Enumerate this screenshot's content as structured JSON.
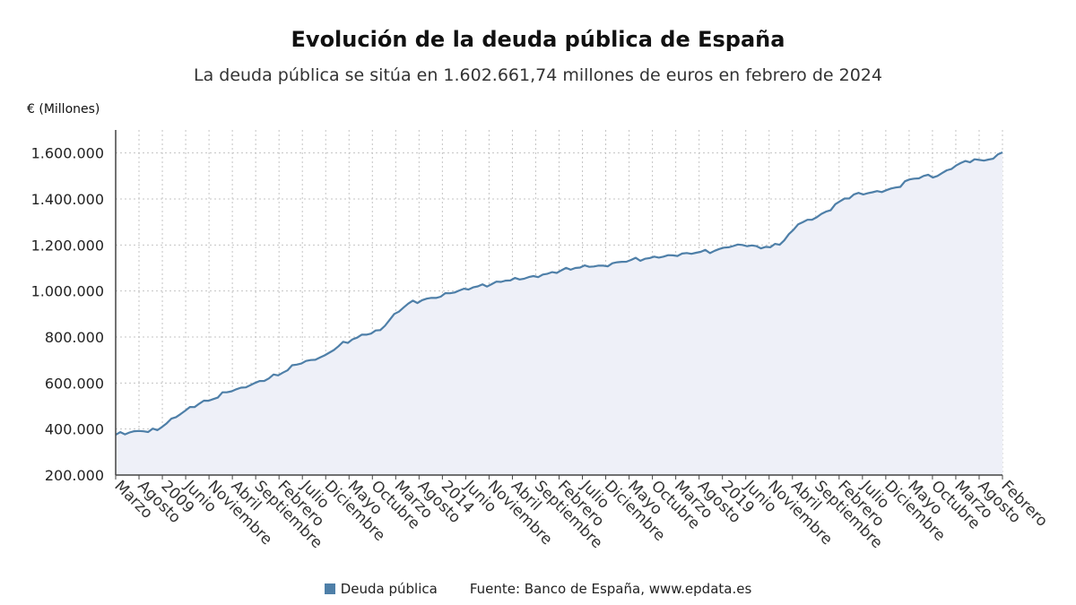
{
  "title": "Evolución de la deuda pública de España",
  "subtitle": "La deuda pública se sitúa en 1.602.661,74 millones de euros en febrero de 2024",
  "footer": {
    "legend_label": "Deuda pública",
    "source": "Fuente: Banco de España, www.epdata.es"
  },
  "colors": {
    "line": "#4e7fa8",
    "area": "#eef0f8",
    "grid": "#c4c4c4"
  },
  "chart_data": {
    "type": "area",
    "ylabel": "€ (Millones)",
    "ylim": [
      200000,
      1700000
    ],
    "y_ticks": [
      "200.000",
      "400.000",
      "600.000",
      "800.000",
      "1.000.000",
      "1.200.000",
      "1.400.000",
      "1.600.000"
    ],
    "x_start": "2008-03",
    "x_end": "2024-02",
    "x_tick_labels": [
      "Marzo",
      "Agosto",
      "2009",
      "Junio",
      "Noviembre",
      "Abril",
      "Septiembre",
      "Febrero",
      "Julio",
      "Diciembre",
      "Mayo",
      "Octubre",
      "Marzo",
      "Agosto",
      "2014",
      "Junio",
      "Noviembre",
      "Abril",
      "Septiembre",
      "Febrero",
      "Julio",
      "Diciembre",
      "Mayo",
      "Octubre",
      "Marzo",
      "Agosto",
      "2019",
      "Junio",
      "Noviembre",
      "Abril",
      "Septiembre",
      "Febrero",
      "Julio",
      "Diciembre",
      "Mayo",
      "Octubre",
      "Marzo",
      "Agosto",
      "Febrero"
    ],
    "grid": true,
    "series": [
      {
        "name": "Deuda pública",
        "anchors": [
          {
            "date": "2008-03",
            "value": 375000
          },
          {
            "date": "2008-06",
            "value": 385000
          },
          {
            "date": "2008-09",
            "value": 390000
          },
          {
            "date": "2008-12",
            "value": 395000
          },
          {
            "date": "2009-03",
            "value": 445000
          },
          {
            "date": "2009-06",
            "value": 480000
          },
          {
            "date": "2009-09",
            "value": 510000
          },
          {
            "date": "2009-12",
            "value": 530000
          },
          {
            "date": "2010-03",
            "value": 560000
          },
          {
            "date": "2010-06",
            "value": 580000
          },
          {
            "date": "2010-09",
            "value": 600000
          },
          {
            "date": "2010-12",
            "value": 620000
          },
          {
            "date": "2011-03",
            "value": 645000
          },
          {
            "date": "2011-06",
            "value": 680000
          },
          {
            "date": "2011-09",
            "value": 700000
          },
          {
            "date": "2011-12",
            "value": 720000
          },
          {
            "date": "2012-03",
            "value": 760000
          },
          {
            "date": "2012-06",
            "value": 790000
          },
          {
            "date": "2012-09",
            "value": 810000
          },
          {
            "date": "2012-12",
            "value": 830000
          },
          {
            "date": "2013-03",
            "value": 900000
          },
          {
            "date": "2013-06",
            "value": 945000
          },
          {
            "date": "2013-09",
            "value": 960000
          },
          {
            "date": "2013-12",
            "value": 970000
          },
          {
            "date": "2014-03",
            "value": 990000
          },
          {
            "date": "2014-06",
            "value": 1010000
          },
          {
            "date": "2014-09",
            "value": 1020000
          },
          {
            "date": "2014-12",
            "value": 1030000
          },
          {
            "date": "2015-03",
            "value": 1045000
          },
          {
            "date": "2015-06",
            "value": 1050000
          },
          {
            "date": "2015-09",
            "value": 1065000
          },
          {
            "date": "2015-12",
            "value": 1075000
          },
          {
            "date": "2016-03",
            "value": 1090000
          },
          {
            "date": "2016-06",
            "value": 1100000
          },
          {
            "date": "2016-09",
            "value": 1105000
          },
          {
            "date": "2016-12",
            "value": 1110000
          },
          {
            "date": "2017-03",
            "value": 1125000
          },
          {
            "date": "2017-06",
            "value": 1135000
          },
          {
            "date": "2017-09",
            "value": 1140000
          },
          {
            "date": "2017-12",
            "value": 1145000
          },
          {
            "date": "2018-03",
            "value": 1155000
          },
          {
            "date": "2018-06",
            "value": 1165000
          },
          {
            "date": "2018-09",
            "value": 1170000
          },
          {
            "date": "2018-12",
            "value": 1175000
          },
          {
            "date": "2019-03",
            "value": 1190000
          },
          {
            "date": "2019-06",
            "value": 1200000
          },
          {
            "date": "2019-09",
            "value": 1195000
          },
          {
            "date": "2019-12",
            "value": 1190000
          },
          {
            "date": "2020-03",
            "value": 1220000
          },
          {
            "date": "2020-06",
            "value": 1290000
          },
          {
            "date": "2020-09",
            "value": 1310000
          },
          {
            "date": "2020-12",
            "value": 1345000
          },
          {
            "date": "2021-03",
            "value": 1390000
          },
          {
            "date": "2021-06",
            "value": 1420000
          },
          {
            "date": "2021-09",
            "value": 1425000
          },
          {
            "date": "2021-12",
            "value": 1430000
          },
          {
            "date": "2022-03",
            "value": 1450000
          },
          {
            "date": "2022-06",
            "value": 1485000
          },
          {
            "date": "2022-09",
            "value": 1500000
          },
          {
            "date": "2022-12",
            "value": 1500000
          },
          {
            "date": "2023-03",
            "value": 1530000
          },
          {
            "date": "2023-06",
            "value": 1565000
          },
          {
            "date": "2023-09",
            "value": 1570000
          },
          {
            "date": "2023-12",
            "value": 1575000
          },
          {
            "date": "2024-02",
            "value": 1602662
          }
        ]
      }
    ]
  }
}
